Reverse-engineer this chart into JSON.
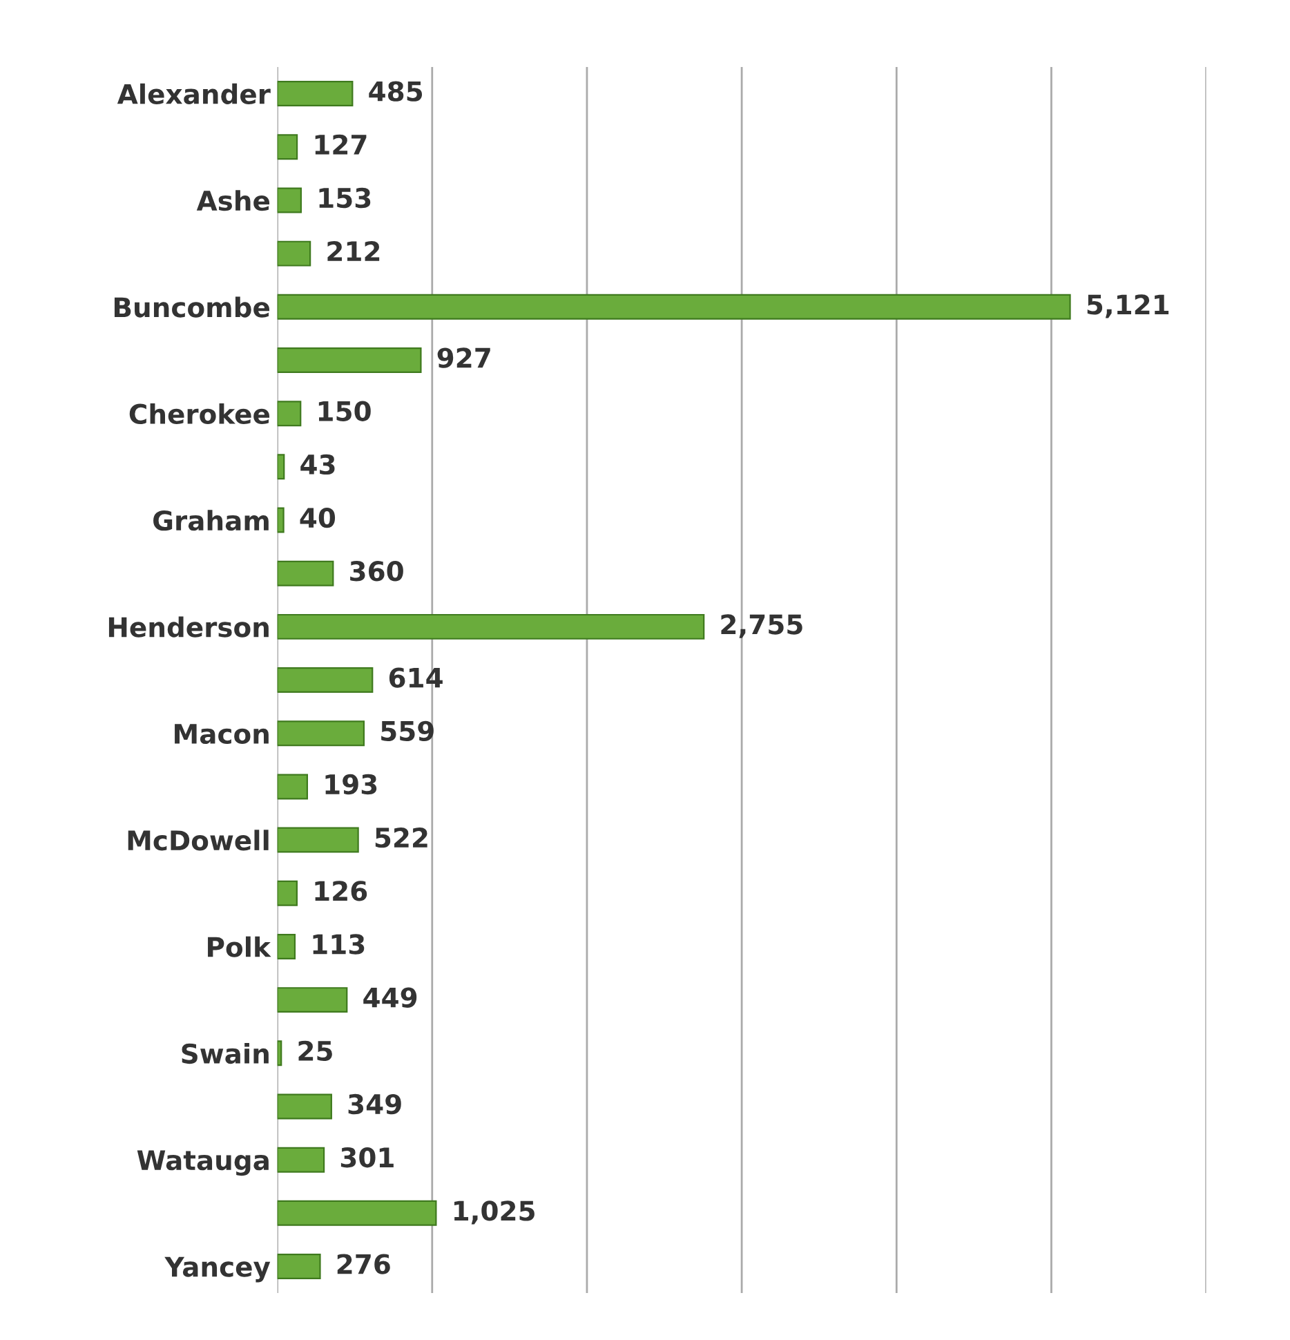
{
  "chart_data": {
    "type": "bar",
    "orientation": "horizontal",
    "categories": [
      "Alexander",
      null,
      "Ashe",
      null,
      "Buncombe",
      null,
      "Cherokee",
      null,
      "Graham",
      null,
      "Henderson",
      null,
      "Macon",
      null,
      "McDowell",
      null,
      "Polk",
      null,
      "Swain",
      null,
      "Watauga",
      null,
      "Yancey"
    ],
    "values": [
      485,
      127,
      153,
      212,
      5121,
      927,
      150,
      43,
      40,
      360,
      2755,
      614,
      559,
      193,
      522,
      126,
      113,
      449,
      25,
      349,
      301,
      1025,
      276
    ],
    "value_labels": [
      "485",
      "127",
      "153",
      "212",
      "5,121",
      "927",
      "150",
      "43",
      "40",
      "360",
      "2,755",
      "614",
      "559",
      "193",
      "522",
      "126",
      "113",
      "449",
      "25",
      "349",
      "301",
      "1,025",
      "276"
    ],
    "color": "#6aac3c",
    "xlim": [
      0,
      6000
    ],
    "xticks": [
      {
        "value": 0,
        "label": null
      },
      {
        "value": 1000,
        "label": null
      },
      {
        "value": 2000,
        "label": null
      },
      {
        "value": 3000,
        "label": null
      },
      {
        "value": 4000,
        "label": null
      },
      {
        "value": 5000,
        "label": null
      },
      {
        "value": 6000,
        "label": null
      }
    ],
    "grid": "x",
    "tick_labels": "y"
  }
}
